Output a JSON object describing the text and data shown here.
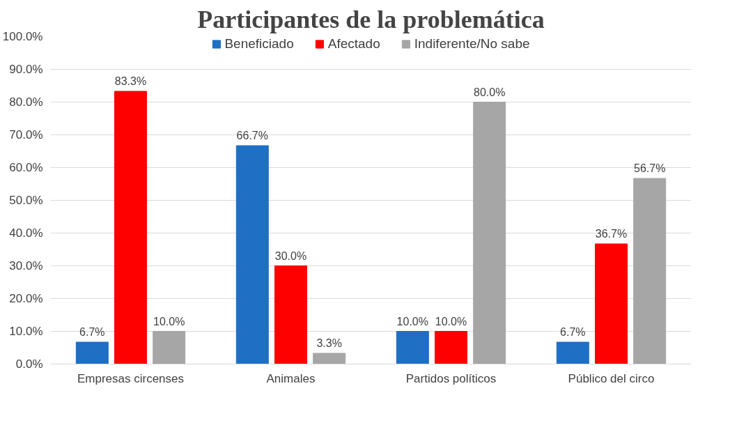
{
  "chart_data": {
    "type": "bar",
    "title": "Participantes de la problemática",
    "categories": [
      "Empresas circenses",
      "Animales",
      "Partidos políticos",
      "Público del circo"
    ],
    "series": [
      {
        "name": "Beneficiado",
        "color": "#1f6fc5",
        "values": [
          6.7,
          66.7,
          10.0,
          6.7
        ],
        "value_labels": [
          "6.7%",
          "66.7%",
          "10.0%",
          "6.7%"
        ]
      },
      {
        "name": "Afectado",
        "color": "#ff0000",
        "values": [
          83.3,
          30.0,
          10.0,
          36.7
        ],
        "value_labels": [
          "83.3%",
          "30.0%",
          "10.0%",
          "36.7%"
        ]
      },
      {
        "name": "Indiferente/No sabe",
        "color": "#a6a6a6",
        "values": [
          10.0,
          3.3,
          80.0,
          56.7
        ],
        "value_labels": [
          "10.0%",
          "3.3%",
          "80.0%",
          "56.7%"
        ]
      }
    ],
    "ylim": [
      0,
      100
    ],
    "yticks": [
      {
        "value": 0,
        "label": "0.0%"
      },
      {
        "value": 10,
        "label": "10.0%"
      },
      {
        "value": 20,
        "label": "20.0%"
      },
      {
        "value": 30,
        "label": "30.0%"
      },
      {
        "value": 40,
        "label": "40.0%"
      },
      {
        "value": 50,
        "label": "50.0%"
      },
      {
        "value": 60,
        "label": "60.0%"
      },
      {
        "value": 70,
        "label": "70.0%"
      },
      {
        "value": 80,
        "label": "80.0%"
      },
      {
        "value": 90,
        "label": "90.0%"
      },
      {
        "value": 100,
        "label": "100.0%"
      }
    ],
    "grid": "y",
    "legend": "top"
  }
}
